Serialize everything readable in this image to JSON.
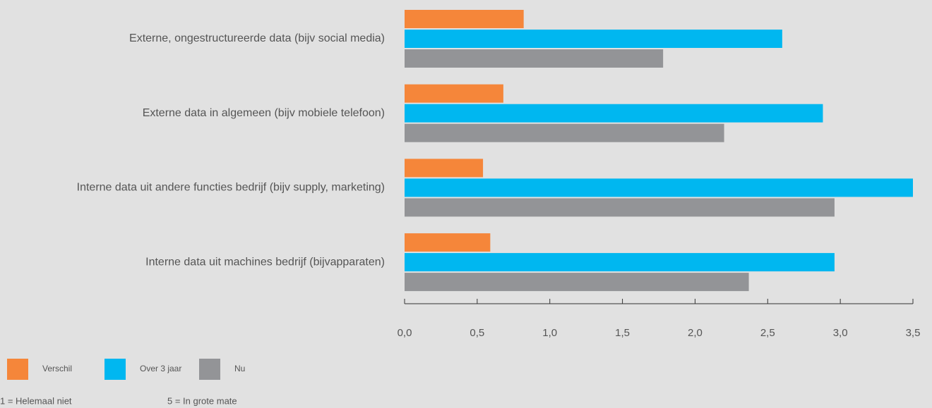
{
  "chart_data": {
    "type": "barh",
    "categories": [
      "Externe, ongestructureerde data (bijv social media)",
      "Externe data in algemeen (bijv mobiele telefoon)",
      "Interne data uit andere functies bedrijf (bijv supply, marketing)",
      "Interne data uit machines bedrijf (bijvapparaten)"
    ],
    "series": [
      {
        "name": "Verschil",
        "color": "#f5863a",
        "values": [
          0.82,
          0.68,
          0.54,
          0.59
        ]
      },
      {
        "name": "Over 3 jaar",
        "color": "#00b7f0",
        "values": [
          2.6,
          2.88,
          3.5,
          2.96
        ]
      },
      {
        "name": "Nu",
        "color": "#939497",
        "values": [
          1.78,
          2.2,
          2.96,
          2.37
        ]
      }
    ],
    "xlim": [
      0,
      3.5
    ],
    "xticks": [
      {
        "value": 0,
        "label": "0,0"
      },
      {
        "value": 0.5,
        "label": "0,5"
      },
      {
        "value": 1,
        "label": "1,0"
      },
      {
        "value": 1.5,
        "label": "1,5"
      },
      {
        "value": 2,
        "label": "2,0"
      },
      {
        "value": 2.5,
        "label": "2,5"
      },
      {
        "value": 3,
        "label": "3,0"
      },
      {
        "value": 3.5,
        "label": "3,5"
      }
    ],
    "annotations": [
      "1 = Helemaal niet",
      "5 = In grote mate"
    ]
  }
}
